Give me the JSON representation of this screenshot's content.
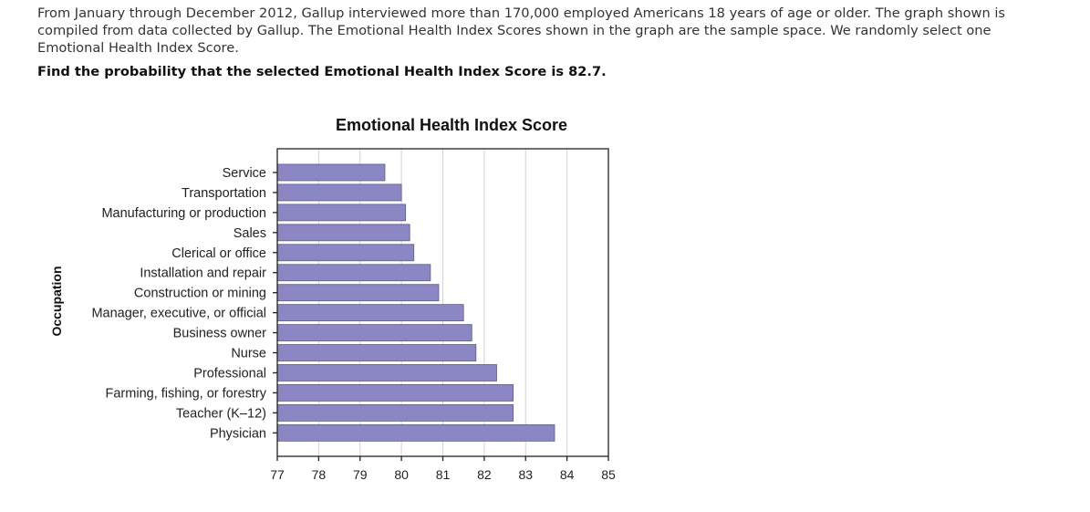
{
  "problem": {
    "intro": "From January through December 2012, Gallup interviewed more than 170,000 employed Americans 18 years of age or older. The graph shown is compiled from data collected by Gallup. The Emotional Health Index Scores shown in the graph are the sample space. We randomly select one Emotional Health Index Score.",
    "question": "Find the probability that the selected Emotional Health Index Score is 82.7."
  },
  "chart_data": {
    "type": "bar",
    "orientation": "horizontal",
    "title": "Emotional Health Index Score",
    "xlabel": "",
    "ylabel": "Occupation",
    "xlim": [
      77,
      85
    ],
    "xticks": [
      "77",
      "78",
      "79",
      "80",
      "81",
      "82",
      "83",
      "84",
      "85"
    ],
    "grid": "vertical",
    "bar_color": "#8a87c4",
    "categories": [
      "Service",
      "Transportation",
      "Manufacturing or production",
      "Sales",
      "Clerical or office",
      "Installation and repair",
      "Construction or mining",
      "Manager, executive, or official",
      "Business owner",
      "Nurse",
      "Professional",
      "Farming, fishing, or forestry",
      "Teacher (K–12)",
      "Physician"
    ],
    "values": [
      79.6,
      80.0,
      80.1,
      80.2,
      80.3,
      80.7,
      80.9,
      81.5,
      81.7,
      81.8,
      82.3,
      82.7,
      82.7,
      83.7
    ]
  }
}
